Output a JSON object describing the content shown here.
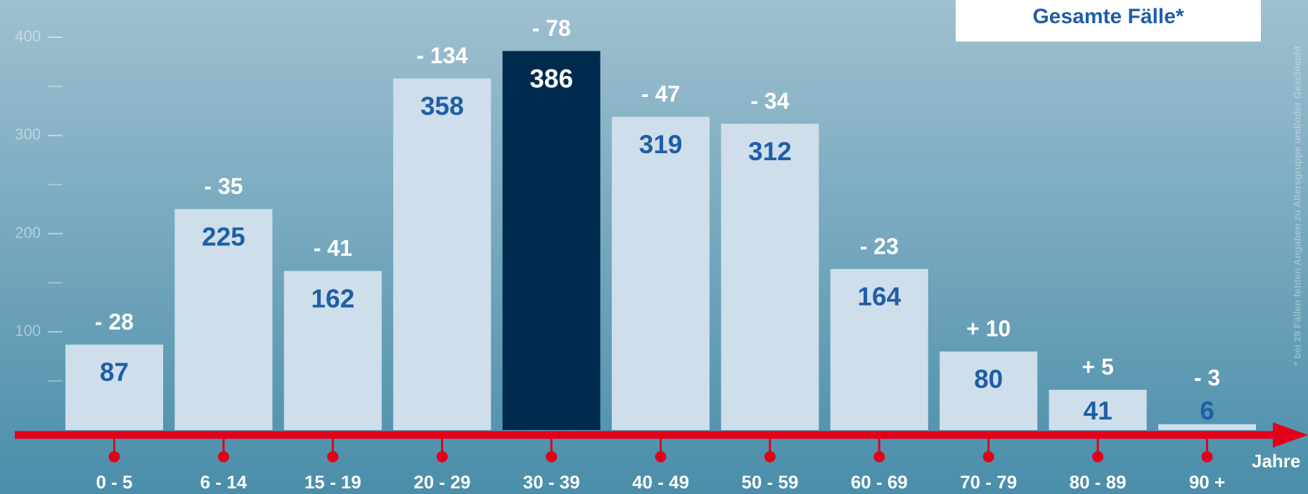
{
  "chart_data": {
    "type": "bar",
    "legend": "Gesamte Fälle*",
    "xlabel": "Jahre",
    "footnote": "* bei 28 Fällen fehlen Angaben zu Altersgruppe und/oder Geschlecht",
    "categories": [
      "0 - 5",
      "6 - 14",
      "15 - 19",
      "20 - 29",
      "30 - 39",
      "40 - 49",
      "50 - 59",
      "60 - 69",
      "70 - 79",
      "80 - 89",
      "90 +"
    ],
    "values": [
      87,
      225,
      162,
      358,
      386,
      319,
      312,
      164,
      80,
      41,
      6
    ],
    "changes": [
      "- 28",
      "- 35",
      "- 41",
      "- 134",
      "- 78",
      "- 47",
      "- 34",
      "- 23",
      "+ 10",
      "+ 5",
      "- 3"
    ],
    "color": "#cedeea",
    "highlight_index": 4,
    "highlight_color": "#002a4d",
    "value_label_color": "#1f5ea8",
    "axis_color": "#e2001a",
    "ylim": [
      0,
      400
    ],
    "yticks": [
      100,
      200,
      300,
      400
    ],
    "yminor_ticks": [
      50,
      150,
      250,
      350
    ]
  }
}
